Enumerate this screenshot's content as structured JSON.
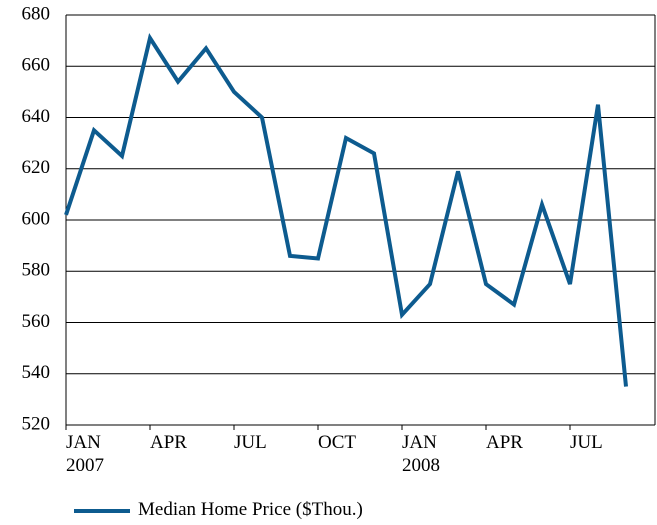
{
  "chart_data": {
    "type": "line",
    "categories": [
      "JAN 2007",
      null,
      null,
      "APR",
      null,
      null,
      "JUL",
      null,
      null,
      "OCT",
      null,
      null,
      "JAN 2008",
      null,
      null,
      "APR",
      null,
      null,
      "JUL",
      null,
      null
    ],
    "series": [
      {
        "name": "Median Home Price ($Thou.)",
        "color": "#0d5b8f",
        "values": [
          602,
          635,
          625,
          671,
          654,
          667,
          650,
          640,
          586,
          585,
          632,
          626,
          563,
          575,
          619,
          575,
          567,
          606,
          575,
          645,
          535
        ]
      }
    ],
    "ylim": [
      520,
      680
    ],
    "yticks": [
      520,
      540,
      560,
      580,
      600,
      620,
      640,
      660,
      680
    ],
    "grid": true
  }
}
